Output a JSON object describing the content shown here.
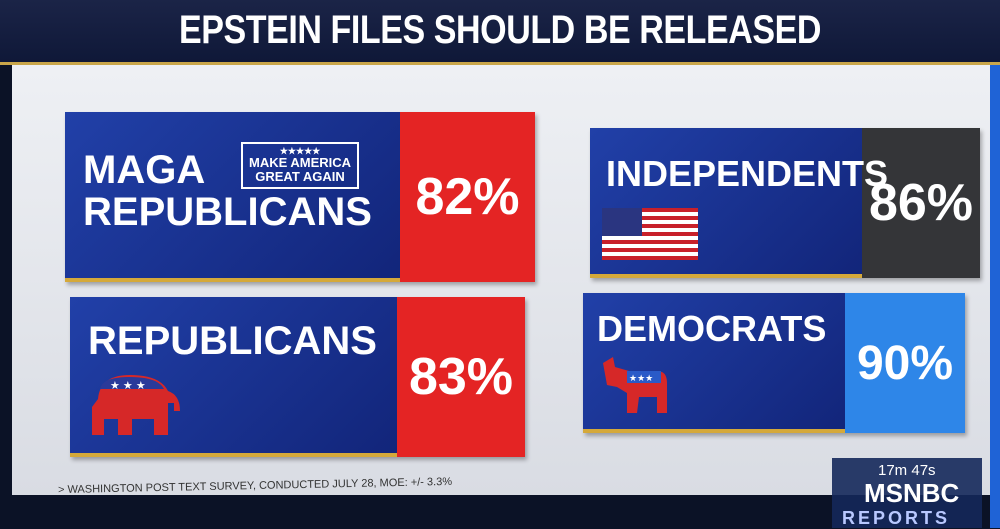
{
  "header": {
    "title": "EPSTEIN FILES SHOULD BE RELEASED"
  },
  "panels": [
    {
      "label_lines": [
        "MAGA",
        "REPUBLICANS"
      ],
      "badge_lines": [
        "MAKE AMERICA",
        "GREAT AGAIN"
      ],
      "value": "82%"
    },
    {
      "label_lines": [
        "INDEPENDENTS"
      ],
      "value": "86%"
    },
    {
      "label_lines": [
        "REPUBLICANS"
      ],
      "value": "83%"
    },
    {
      "label_lines": [
        "DEMOCRATS"
      ],
      "value": "90%"
    }
  ],
  "footer": {
    "source": "> WASHINGTON POST TEXT SURVEY, CONDUCTED JULY 28, MOE: +/- 3.3%"
  },
  "broadcast": {
    "timer": "17m 47s",
    "network": "MSNBC",
    "show": "REPORTS"
  }
}
